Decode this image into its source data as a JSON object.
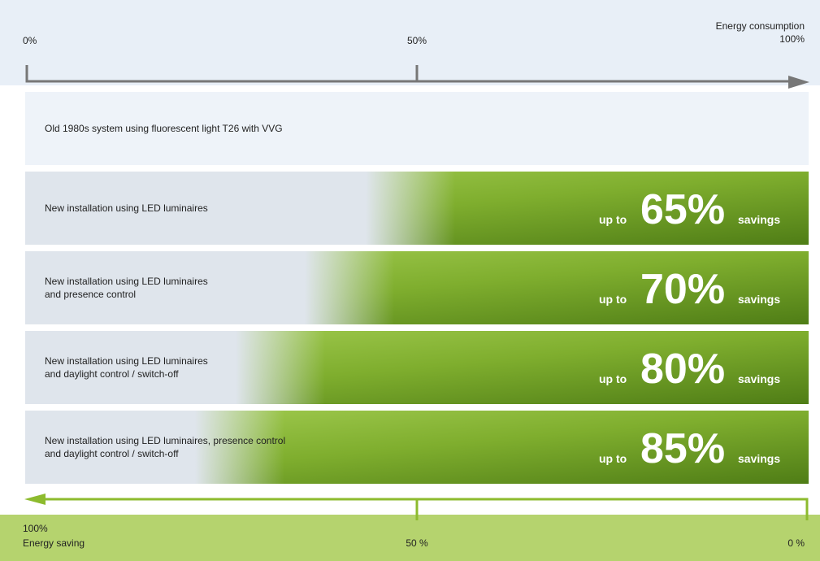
{
  "axis_top": {
    "label": "Energy consumption",
    "ticks": [
      "0%",
      "50%",
      "100%"
    ]
  },
  "rows": [
    {
      "lines": [
        "Old 1980s system using fluorescent light T26 with VVG"
      ]
    },
    {
      "lines": [
        "New installation using LED luminaires"
      ],
      "prefix": "up to",
      "value": "65%",
      "suffix": "savings"
    },
    {
      "lines": [
        "New installation using LED luminaires",
        "and presence control"
      ],
      "prefix": "up to",
      "value": "70%",
      "suffix": "savings"
    },
    {
      "lines": [
        "New installation using LED luminaires",
        "and daylight control / switch-off"
      ],
      "prefix": "up to",
      "value": "80%",
      "suffix": "savings"
    },
    {
      "lines": [
        "New installation using LED luminaires, presence control",
        "and daylight control / switch-off"
      ],
      "prefix": "up to",
      "value": "85%",
      "suffix": "savings"
    }
  ],
  "axis_bottom": {
    "label": "Energy saving",
    "ticks": [
      "100%",
      "50 %",
      "0 %"
    ]
  }
}
